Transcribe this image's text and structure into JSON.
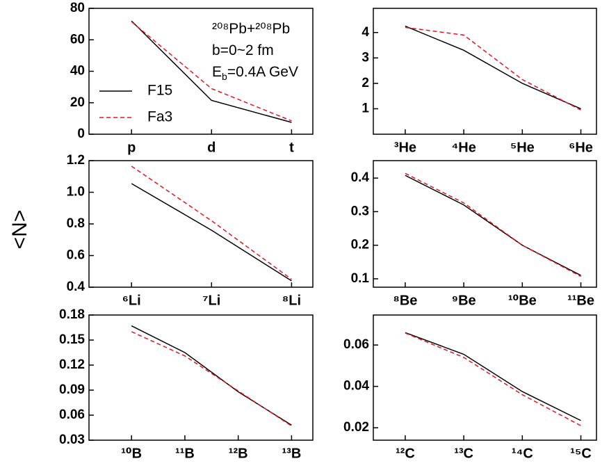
{
  "y_label": "<N>",
  "chart_data": [
    {
      "type": "line",
      "categories": [
        "p",
        "d",
        "t"
      ],
      "ylim": [
        0,
        80
      ],
      "yticks": [
        0,
        20,
        40,
        60,
        80
      ],
      "series": [
        {
          "name": "F15",
          "color": "#000000",
          "dash": "solid",
          "values": [
            72,
            21.5,
            7.5
          ]
        },
        {
          "name": "Fa3",
          "color": "#e8141c",
          "dash": "dashed",
          "values": [
            71.5,
            29,
            8.5
          ]
        }
      ],
      "legend": "left",
      "annotations": [
        [
          "²⁰⁸Pb+²⁰⁸Pb"
        ],
        [
          "b=0~2 fm"
        ],
        [
          "E",
          "b",
          "=0.4A GeV"
        ]
      ]
    },
    {
      "type": "line",
      "categories": [
        "³He",
        "⁴He",
        "⁵He",
        "⁶He"
      ],
      "ylim": [
        0,
        4.95
      ],
      "yticks": [
        1,
        2,
        3,
        4
      ],
      "series": [
        {
          "name": "F15",
          "color": "#000000",
          "dash": "solid",
          "values": [
            4.25,
            3.3,
            2.0,
            1.0
          ]
        },
        {
          "name": "Fa3",
          "color": "#e8141c",
          "dash": "dashed",
          "values": [
            4.2,
            3.9,
            2.15,
            0.95
          ]
        }
      ]
    },
    {
      "type": "line",
      "categories": [
        "⁶Li",
        "⁷Li",
        "⁸Li"
      ],
      "ylim": [
        0.4,
        1.2
      ],
      "yticks": [
        0.4,
        0.6,
        0.8,
        {
          "value": 1,
          "label": "1.0"
        },
        1.2
      ],
      "series": [
        {
          "name": "F15",
          "color": "#000000",
          "dash": "solid",
          "values": [
            1.055,
            0.76,
            0.44
          ]
        },
        {
          "name": "Fa3",
          "color": "#e8141c",
          "dash": "dashed",
          "values": [
            1.165,
            0.82,
            0.45
          ]
        }
      ]
    },
    {
      "type": "line",
      "categories": [
        "⁸Be",
        "⁹Be",
        "¹⁰Be",
        "¹¹Be"
      ],
      "ylim": [
        0.075,
        0.452
      ],
      "yticks": [
        0.1,
        0.2,
        0.3,
        0.4
      ],
      "series": [
        {
          "name": "F15",
          "color": "#000000",
          "dash": "solid",
          "values": [
            0.408,
            0.32,
            0.2,
            0.11
          ]
        },
        {
          "name": "Fa3",
          "color": "#e8141c",
          "dash": "dashed",
          "values": [
            0.414,
            0.326,
            0.2,
            0.107
          ]
        }
      ]
    },
    {
      "type": "line",
      "categories": [
        "¹⁰B",
        "¹¹B",
        "¹²B",
        "¹³B"
      ],
      "ylim": [
        0.03,
        0.18
      ],
      "yticks": [
        0.03,
        0.06,
        0.09,
        0.12,
        0.15,
        0.18
      ],
      "series": [
        {
          "name": "F15",
          "color": "#000000",
          "dash": "solid",
          "values": [
            0.167,
            0.135,
            0.088,
            0.048
          ]
        },
        {
          "name": "Fa3",
          "color": "#e8141c",
          "dash": "dashed",
          "values": [
            0.16,
            0.131,
            0.089,
            0.047
          ]
        }
      ]
    },
    {
      "type": "line",
      "categories": [
        "¹²C",
        "¹³C",
        "¹⁴C",
        "¹⁵C"
      ],
      "ylim": [
        0.014,
        0.0745
      ],
      "yticks": [
        0.02,
        0.04,
        0.06
      ],
      "series": [
        {
          "name": "F15",
          "color": "#000000",
          "dash": "solid",
          "values": [
            0.066,
            0.0555,
            0.0375,
            0.0235
          ]
        },
        {
          "name": "Fa3",
          "color": "#e8141c",
          "dash": "dashed",
          "values": [
            0.0658,
            0.054,
            0.036,
            0.021
          ]
        }
      ]
    }
  ]
}
